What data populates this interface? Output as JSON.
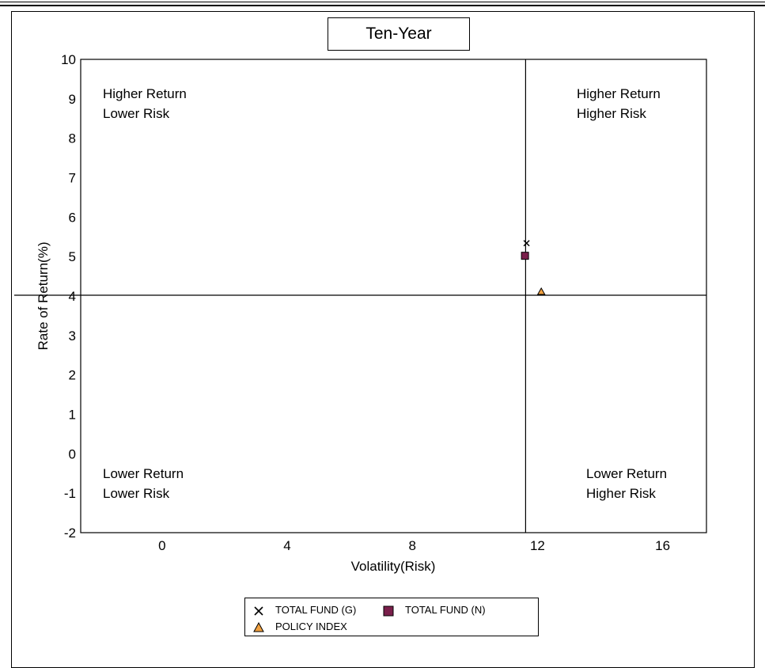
{
  "chart_data": {
    "type": "scatter",
    "title": "Ten-Year",
    "xlabel": "Volatility(Risk)",
    "ylabel": "Rate of Return(%)",
    "xlim": [
      -2.6,
      17.4
    ],
    "ylim": [
      -2,
      10
    ],
    "xticks": [
      0,
      4,
      8,
      12,
      16
    ],
    "yticks": [
      -2,
      -1,
      0,
      1,
      2,
      3,
      4,
      5,
      6,
      7,
      8,
      9,
      10
    ],
    "grid": false,
    "legend_position": "bottom",
    "reference_lines": {
      "vertical_x": 11.62,
      "horizontal_y": 4.02
    },
    "quadrant_labels": [
      {
        "id": "top-left",
        "lines": [
          "Higher Return",
          "Lower Risk"
        ]
      },
      {
        "id": "top-right",
        "lines": [
          "Higher Return",
          "Higher Risk"
        ]
      },
      {
        "id": "bottom-left",
        "lines": [
          "Lower Return",
          "Lower Risk"
        ]
      },
      {
        "id": "bottom-right",
        "lines": [
          "Lower Return",
          "Higher Risk"
        ]
      }
    ],
    "series": [
      {
        "name": "TOTAL FUND (G)",
        "marker": "x",
        "color": "#000000",
        "points": [
          [
            11.65,
            5.34
          ]
        ]
      },
      {
        "name": "TOTAL FUND (N)",
        "marker": "square",
        "color": "#7a1f4b",
        "points": [
          [
            11.6,
            5.02
          ]
        ]
      },
      {
        "name": "POLICY INDEX",
        "marker": "triangle",
        "color": "#f0a040",
        "points": [
          [
            12.12,
            4.1
          ]
        ]
      }
    ]
  }
}
